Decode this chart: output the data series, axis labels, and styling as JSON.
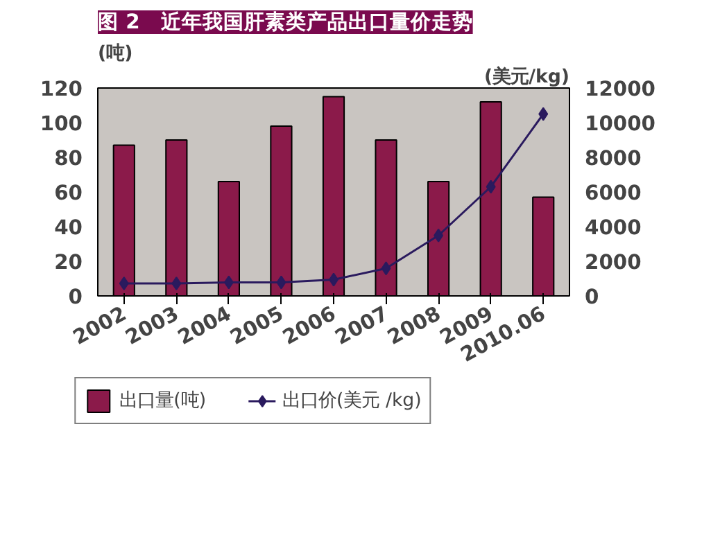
{
  "chart_data": {
    "type": "bar",
    "title": "图 2　近年我国肝素类产品出口量价走势",
    "ylabel": "(吨)",
    "y2label": "(美元/kg)",
    "categories": [
      "2002",
      "2003",
      "2004",
      "2005",
      "2006",
      "2007",
      "2008",
      "2009",
      "2010.06"
    ],
    "series": [
      {
        "name": "出口量(吨)",
        "type": "bar",
        "color": "#8b1a4a",
        "values": [
          87,
          90,
          66,
          98,
          115,
          90,
          66,
          112,
          57
        ]
      },
      {
        "name": "出口价(美元 /kg)",
        "type": "line",
        "axis": "y2",
        "color": "#2a1a5e",
        "marker": "diamond",
        "values": [
          720,
          720,
          780,
          780,
          940,
          1590,
          3490,
          6300,
          10500
        ]
      }
    ],
    "ylim": [
      0,
      120
    ],
    "yticks": [
      0,
      20,
      40,
      60,
      80,
      100,
      120
    ],
    "y2lim": [
      0,
      12000
    ],
    "y2ticks": [
      0,
      2000,
      4000,
      6000,
      8000,
      10000,
      12000
    ],
    "grid": false,
    "legend": "bottom"
  }
}
